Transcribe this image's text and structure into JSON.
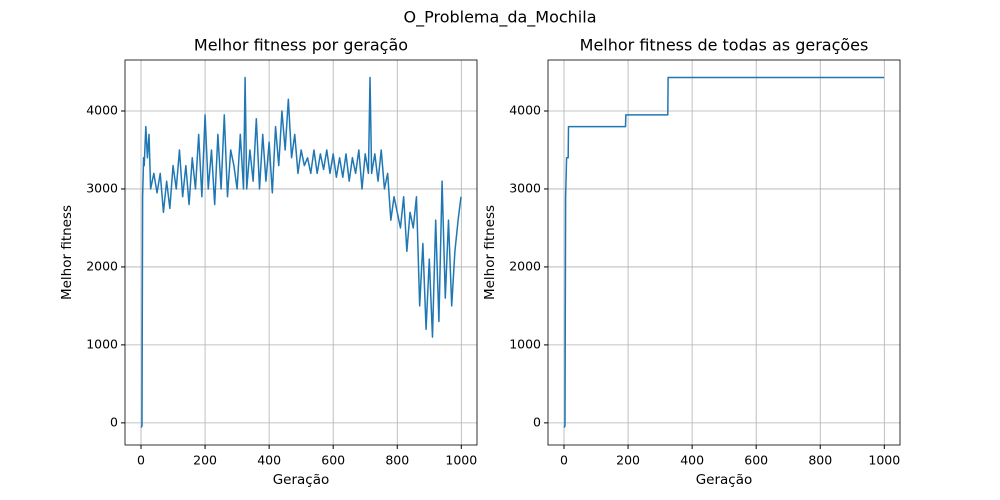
{
  "title": "O_Problema_da_Mochila",
  "chart_data": [
    {
      "type": "line",
      "title": "Melhor fitness por geração",
      "xlabel": "Geração",
      "ylabel": "Melhor fitness",
      "xlim": [
        -50,
        1049
      ],
      "ylim": [
        -284,
        4654
      ],
      "xticks": [
        0,
        200,
        400,
        600,
        800,
        1000
      ],
      "yticks": [
        0,
        1000,
        2000,
        3000,
        4000
      ],
      "grid": true,
      "series": [
        {
          "color": "#1f77b4",
          "x": [
            0,
            3,
            5,
            8,
            10,
            15,
            20,
            25,
            30,
            40,
            50,
            60,
            70,
            80,
            90,
            100,
            110,
            120,
            130,
            140,
            150,
            160,
            170,
            180,
            190,
            200,
            210,
            220,
            230,
            240,
            250,
            260,
            270,
            280,
            290,
            300,
            310,
            320,
            325,
            330,
            340,
            350,
            360,
            370,
            380,
            390,
            400,
            410,
            420,
            430,
            440,
            450,
            460,
            470,
            480,
            490,
            500,
            510,
            520,
            530,
            540,
            550,
            560,
            570,
            580,
            590,
            600,
            610,
            620,
            630,
            640,
            650,
            660,
            670,
            680,
            690,
            700,
            710,
            715,
            720,
            730,
            740,
            750,
            760,
            770,
            780,
            790,
            800,
            810,
            820,
            830,
            840,
            850,
            860,
            870,
            880,
            890,
            900,
            910,
            920,
            930,
            940,
            950,
            960,
            970,
            980,
            990,
            999
          ],
          "values": [
            -60,
            -40,
            2900,
            3400,
            3300,
            3800,
            3400,
            3700,
            3000,
            3200,
            2950,
            3200,
            2700,
            3100,
            2750,
            3300,
            3000,
            3500,
            2900,
            3300,
            2800,
            3400,
            3000,
            3700,
            2900,
            3950,
            3000,
            3500,
            2800,
            3700,
            3000,
            3950,
            2900,
            3500,
            3300,
            3000,
            3700,
            3000,
            4430,
            3000,
            3500,
            3100,
            3900,
            3000,
            3700,
            3100,
            3600,
            2950,
            3800,
            3300,
            4000,
            3500,
            4150,
            3400,
            3700,
            3200,
            3500,
            3300,
            3400,
            3200,
            3500,
            3200,
            3450,
            3250,
            3500,
            3200,
            3450,
            3150,
            3400,
            3150,
            3450,
            3100,
            3400,
            3200,
            3500,
            3000,
            3450,
            3200,
            4430,
            3200,
            3450,
            3100,
            3500,
            3000,
            3200,
            2600,
            2900,
            2700,
            2500,
            2900,
            2200,
            2700,
            2500,
            2900,
            1500,
            2300,
            1200,
            2100,
            1100,
            2600,
            1300,
            3100,
            1600,
            2600,
            1500,
            2200,
            2600,
            2900
          ]
        }
      ]
    },
    {
      "type": "line",
      "title": "Melhor fitness de todas as gerações",
      "xlabel": "Geração",
      "ylabel": "Melhor fitness",
      "xlim": [
        -50,
        1049
      ],
      "ylim": [
        -284,
        4654
      ],
      "xticks": [
        0,
        200,
        400,
        600,
        800,
        1000
      ],
      "yticks": [
        0,
        1000,
        2000,
        3000,
        4000
      ],
      "grid": true,
      "series": [
        {
          "color": "#1f77b4",
          "x": [
            0,
            3,
            5,
            8,
            13,
            14,
            192,
            193,
            324,
            325,
            999
          ],
          "values": [
            -60,
            -40,
            2900,
            3400,
            3400,
            3800,
            3800,
            3950,
            3950,
            4430,
            4430
          ]
        }
      ]
    }
  ]
}
